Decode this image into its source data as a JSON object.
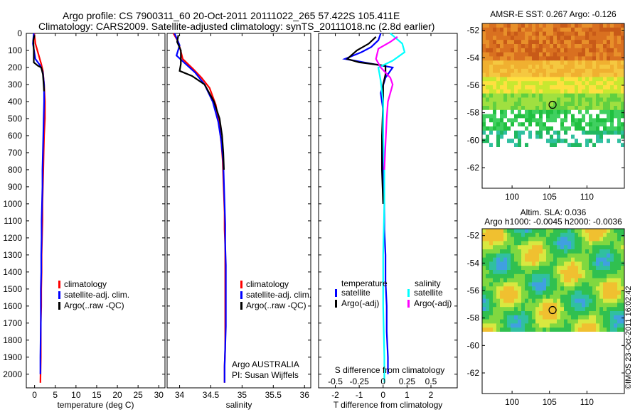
{
  "header": {
    "line1": "Argo profile: CS 7900311_60 20-Oct-2011 20111022_265 57.422S 105.411E",
    "line2": "Climatology: CARS2009. Satellite-adjusted climatology: synTS_20111018.nc (2.8d earlier)"
  },
  "credit": "©IMOS 23-Oct-2011 16:02:42",
  "colors": {
    "climatology": "#ff0000",
    "satellite": "#0000ff",
    "argo": "#000000",
    "sal_satellite": "#00ffff",
    "sal_argo": "#ff00ff"
  },
  "chart_data": [
    {
      "type": "line",
      "panel": "temperature",
      "xlabel": "temperature (deg C)",
      "ylabel": "",
      "xlim": [
        -2,
        31.5
      ],
      "ylim": [
        2080,
        0
      ],
      "xticks": [
        0,
        5,
        10,
        15,
        20,
        25,
        30
      ],
      "yticks": [
        0,
        100,
        200,
        300,
        400,
        500,
        600,
        700,
        800,
        900,
        1000,
        1100,
        1200,
        1300,
        1400,
        1500,
        1600,
        1700,
        1800,
        1900,
        2000
      ],
      "legend": [
        "climatology",
        "satellite-adj. clim.",
        "Argo(..raw -QC)"
      ],
      "series": [
        {
          "name": "climatology",
          "color": "#ff0000",
          "x": [
            -0.1,
            0.2,
            1.6,
            2.0,
            2.3,
            2.5,
            2.5,
            2.4,
            2.3,
            2.2,
            2.1,
            2.0,
            1.9,
            1.9,
            1.8,
            1.7,
            1.7,
            1.6,
            1.6,
            1.5,
            1.5,
            1.5,
            1.4
          ],
          "y": [
            0,
            60,
            180,
            220,
            300,
            400,
            500,
            550,
            600,
            700,
            800,
            900,
            1000,
            1100,
            1200,
            1300,
            1400,
            1500,
            1600,
            1700,
            1800,
            1900,
            2050
          ]
        },
        {
          "name": "satellite-adj. clim.",
          "color": "#0000ff",
          "x": [
            -0.2,
            -0.4,
            0.2,
            1.4,
            2.0,
            2.3,
            2.3,
            2.2,
            2.1,
            2.0,
            1.9,
            1.9,
            1.8,
            1.7,
            1.7,
            1.6,
            1.6,
            1.5,
            1.5,
            1.4,
            1.4
          ],
          "y": [
            0,
            60,
            150,
            190,
            230,
            300,
            400,
            500,
            600,
            700,
            800,
            900,
            1000,
            1100,
            1200,
            1300,
            1400,
            1500,
            1700,
            1900,
            2000
          ]
        },
        {
          "name": "Argo(..raw -QC)",
          "color": "#000000",
          "x": [
            0.0,
            -0.3,
            -0.2,
            -0.2,
            0.8,
            1.6,
            2.0,
            2.2,
            2.3
          ],
          "y": [
            10,
            40,
            100,
            170,
            190,
            200,
            240,
            300,
            340
          ]
        }
      ]
    },
    {
      "type": "line",
      "panel": "salinity",
      "xlabel": "salinity",
      "ylabel": "",
      "xlim": [
        33.8,
        36.1
      ],
      "ylim": [
        2080,
        0
      ],
      "xticks": [
        34,
        34.5,
        35,
        35.5,
        36
      ],
      "legend": [
        "climatology",
        "satellite-adj. clim.",
        "Argo(..raw -QC)"
      ],
      "annotation": [
        "Argo AUSTRALIA",
        "PI: Susan Wijffels"
      ],
      "series": [
        {
          "name": "climatology",
          "color": "#ff0000",
          "x": [
            33.9,
            33.98,
            34.05,
            34.22,
            34.35,
            34.48,
            34.58,
            34.64,
            34.67,
            34.69,
            34.7,
            34.71,
            34.72,
            34.72,
            34.73,
            34.73,
            34.73,
            34.73,
            34.73,
            34.73,
            34.73,
            34.72,
            34.72
          ],
          "y": [
            0,
            50,
            150,
            210,
            260,
            320,
            420,
            550,
            650,
            750,
            850,
            950,
            1050,
            1150,
            1250,
            1350,
            1450,
            1550,
            1650,
            1750,
            1850,
            1950,
            2050
          ]
        },
        {
          "name": "satellite-adj. clim.",
          "color": "#0000ff",
          "x": [
            33.92,
            34.0,
            33.95,
            34.1,
            34.25,
            34.4,
            34.53,
            34.62,
            34.67,
            34.7,
            34.71,
            34.72,
            34.73,
            34.73,
            34.74,
            34.74,
            34.74,
            34.74,
            34.73,
            34.72,
            34.72
          ],
          "y": [
            0,
            70,
            130,
            180,
            230,
            300,
            400,
            520,
            640,
            760,
            880,
            1000,
            1120,
            1240,
            1360,
            1480,
            1600,
            1720,
            1840,
            1960,
            2050
          ]
        },
        {
          "name": "Argo(..raw -QC)",
          "color": "#000000",
          "x": [
            33.98,
            33.96,
            34.02,
            34.02,
            34.0,
            34.2,
            34.4,
            34.55,
            34.64,
            34.68,
            34.7,
            34.71
          ],
          "y": [
            10,
            50,
            100,
            180,
            220,
            250,
            300,
            400,
            500,
            600,
            700,
            800
          ]
        }
      ]
    },
    {
      "type": "line",
      "panel": "difference from climatology",
      "xlabel": "T difference from climatology",
      "xlabel_top": "S difference from climatology",
      "xlim": [
        -2.7,
        3.1
      ],
      "ylim": [
        2080,
        0
      ],
      "xticks_T": [
        -2,
        -1,
        0,
        1,
        2
      ],
      "xticks_S": [
        -0.5,
        -0.25,
        0,
        0.25,
        0.5
      ],
      "legend_headers": [
        "temperature",
        "salinity"
      ],
      "legend": [
        "satellite",
        "Argo(-adj)",
        "satellite",
        "Argo(-adj)"
      ],
      "series": [
        {
          "name": "temperature satellite",
          "color": "#0000ff",
          "x": [
            -0.1,
            -0.2,
            -0.5,
            -0.9,
            -1.6,
            -0.8,
            0.4,
            0.1,
            -0.1,
            0.0,
            0.0,
            0.0,
            0.0,
            0.05,
            0.05,
            0.1,
            0.1,
            0.15,
            0.15,
            0.2,
            0.2
          ],
          "y": [
            0,
            40,
            80,
            110,
            150,
            170,
            200,
            260,
            350,
            450,
            550,
            700,
            850,
            1000,
            1150,
            1300,
            1450,
            1600,
            1750,
            1900,
            2000
          ]
        },
        {
          "name": "temperature Argo(-adj)",
          "color": "#000000",
          "x": [
            -0.3,
            -0.6,
            -1.1,
            -1.5,
            -1.0,
            0.1,
            0.1,
            0.0,
            0.0,
            -0.05,
            -0.05,
            0.0
          ],
          "y": [
            20,
            60,
            100,
            150,
            170,
            190,
            240,
            300,
            400,
            600,
            800,
            1000
          ]
        },
        {
          "name": "salinity satellite",
          "color": "#00ffff",
          "x": [
            0.3,
            0.8,
            0.9,
            0.4,
            -0.2,
            -0.1,
            0.0,
            0.0,
            0.05,
            0.05,
            0.0,
            0.0,
            0.05,
            0.05
          ],
          "y": [
            0,
            60,
            110,
            160,
            200,
            280,
            400,
            600,
            800,
            1000,
            1300,
            1600,
            1900,
            2050
          ]
        },
        {
          "name": "salinity Argo(-adj)",
          "color": "#ff00ff",
          "x": [
            0.6,
            0.3,
            -0.2,
            -0.3,
            -0.1,
            0.3,
            0.4,
            0.2,
            0.15,
            0.1,
            0.05
          ],
          "y": [
            20,
            50,
            90,
            150,
            200,
            260,
            300,
            400,
            500,
            650,
            800
          ]
        }
      ]
    },
    {
      "type": "heatmap",
      "panel": "AMSR-E SST",
      "title": "AMSR-E SST: 0.267 Argo: -0.126",
      "xticks": [
        100,
        105,
        110
      ],
      "yticks": [
        -52,
        -54,
        -56,
        -58,
        -60,
        -62
      ],
      "xlim": [
        96,
        115
      ],
      "ylim": [
        -63.5,
        -51.5
      ],
      "marker": {
        "x": 105.411,
        "y": -57.422
      }
    },
    {
      "type": "heatmap",
      "panel": "Altim. SLA",
      "title": "Altim. SLA: 0.036",
      "subtitle": "Argo h1000: -0.0045 h2000: -0.0036",
      "xticks": [
        100,
        105,
        110
      ],
      "yticks": [
        -52,
        -54,
        -56,
        -58,
        -60,
        -62
      ],
      "xlim": [
        96,
        115
      ],
      "ylim": [
        -63.5,
        -51.5
      ],
      "marker": {
        "x": 105.411,
        "y": -57.422
      }
    }
  ]
}
